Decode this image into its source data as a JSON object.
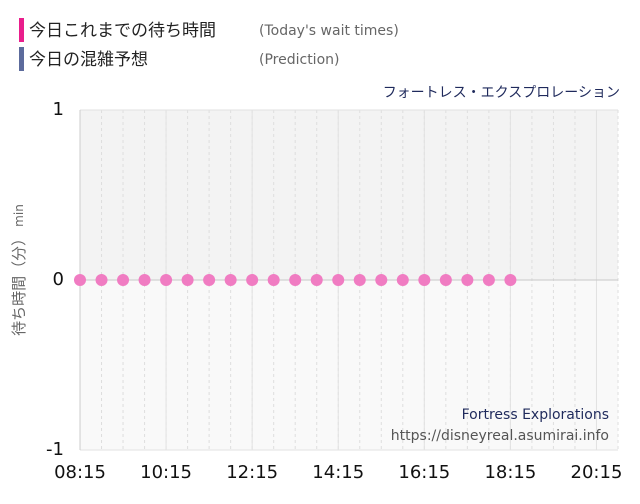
{
  "chart_data": {
    "type": "scatter",
    "title": "フォートレス・エクスプロレーション",
    "ylabel": "待ち時間（分）",
    "yunit": "min",
    "attraction_name": "Fortress Explorations",
    "source": "https://disneyreal.asumirai.info",
    "x": [
      "08:15",
      "08:45",
      "09:15",
      "09:45",
      "10:15",
      "10:45",
      "11:15",
      "11:45",
      "12:15",
      "12:45",
      "13:15",
      "13:45",
      "14:15",
      "14:45",
      "15:15",
      "15:45",
      "16:15",
      "16:45",
      "17:15",
      "17:45",
      "18:15"
    ],
    "series": [
      {
        "name": "今日これまでの待ち時間",
        "note": "(Today's wait times)",
        "color": "#e91e8c",
        "marker_color": "#f07cc2",
        "values": [
          0,
          0,
          0,
          0,
          0,
          0,
          0,
          0,
          0,
          0,
          0,
          0,
          0,
          0,
          0,
          0,
          0,
          0,
          0,
          0,
          0
        ]
      },
      {
        "name": "今日の混雑予想",
        "note": "(Prediction)",
        "color": "#5c6b9c",
        "marker_color": "#5c6b9c",
        "values": [
          null,
          null,
          null,
          null,
          null,
          null,
          null,
          null,
          null,
          null,
          null,
          null,
          null,
          null,
          null,
          null,
          null,
          null,
          null,
          null,
          null
        ]
      }
    ],
    "xlim": [
      "08:15",
      "20:45"
    ],
    "xticks": [
      "08:15",
      "10:15",
      "12:15",
      "14:15",
      "16:15",
      "18:15",
      "20:15"
    ],
    "ylim": [
      -1,
      1
    ],
    "yticks": [
      -1,
      0,
      1
    ],
    "grid": true
  }
}
